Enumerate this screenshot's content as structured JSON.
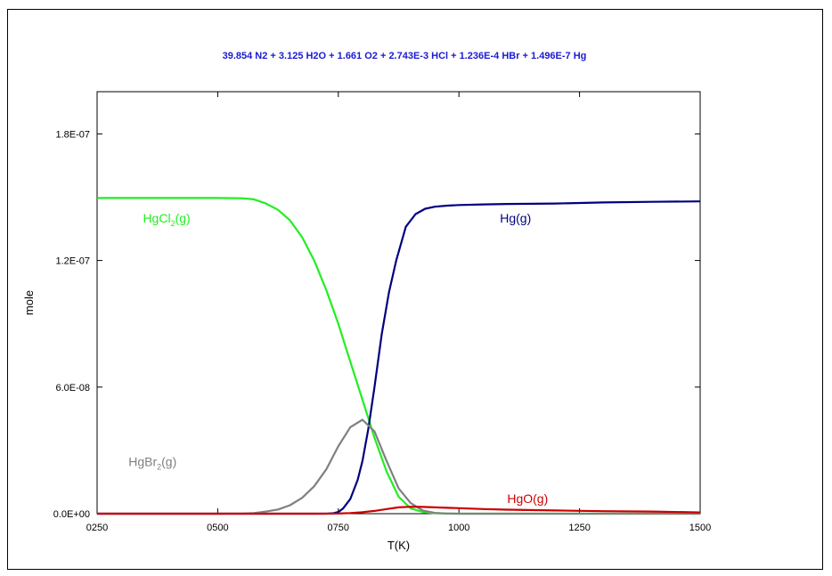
{
  "chart_data": {
    "type": "line",
    "title": "39.854 N2 +  3.125 H2O +  1.661 O2 + 2.743E-3 HCl + 1.236E-4 HBr + 1.496E-7 Hg",
    "title_color": "#1a1ad4",
    "xlabel": "T(K)",
    "ylabel": "mole",
    "xlim": [
      250,
      1500
    ],
    "ylim": [
      0,
      2e-07
    ],
    "x_ticks": [
      250,
      500,
      750,
      1000,
      1250,
      1500
    ],
    "x_tick_labels": [
      "0250",
      "0500",
      "0750",
      "1000",
      "1250",
      "1500"
    ],
    "y_ticks": [
      0,
      6e-08,
      1.2e-07,
      1.8e-07
    ],
    "y_tick_labels": [
      "0.0E+00",
      "6.0E-08",
      "1.2E-07",
      "1.8E-07"
    ],
    "grid": false,
    "series": [
      {
        "name": "HgCl2(g)",
        "label_text": "HgCl",
        "label_sub": "2",
        "label_suffix": "(g)",
        "label_at": [
          345,
          1.38e-07
        ],
        "color": "#22ee22",
        "x": [
          250,
          300,
          350,
          400,
          450,
          500,
          550,
          575,
          600,
          625,
          650,
          675,
          700,
          725,
          750,
          775,
          800,
          825,
          850,
          875,
          900,
          925,
          950,
          975,
          1000,
          1100,
          1250,
          1500
        ],
        "y": [
          1.496e-07,
          1.496e-07,
          1.496e-07,
          1.496e-07,
          1.496e-07,
          1.496e-07,
          1.495e-07,
          1.49e-07,
          1.47e-07,
          1.44e-07,
          1.39e-07,
          1.31e-07,
          1.2e-07,
          1.06e-07,
          9e-08,
          7.2e-08,
          5.4e-08,
          3.6e-08,
          2e-08,
          8e-09,
          2.5e-09,
          8e-10,
          2e-10,
          5e-11,
          1e-11,
          0,
          0,
          0
        ]
      },
      {
        "name": "Hg(g)",
        "label_text": "Hg(g)",
        "label_sub": "",
        "label_suffix": "",
        "label_at": [
          1085,
          1.38e-07
        ],
        "color": "#000080",
        "x": [
          250,
          500,
          700,
          725,
          740,
          750,
          760,
          775,
          790,
          800,
          812,
          825,
          840,
          855,
          870,
          890,
          910,
          930,
          950,
          975,
          1000,
          1050,
          1100,
          1200,
          1300,
          1400,
          1500
        ],
        "y": [
          0,
          0,
          0,
          2e-11,
          2e-10,
          8e-10,
          2.5e-09,
          7e-09,
          1.6e-08,
          2.5e-08,
          4e-08,
          6e-08,
          8.5e-08,
          1.05e-07,
          1.2e-07,
          1.36e-07,
          1.42e-07,
          1.445e-07,
          1.455e-07,
          1.46e-07,
          1.463e-07,
          1.466e-07,
          1.468e-07,
          1.47e-07,
          1.475e-07,
          1.478e-07,
          1.48e-07
        ]
      },
      {
        "name": "HgBr2(g)",
        "label_text": "HgBr",
        "label_sub": "2",
        "label_suffix": "(g)",
        "label_at": [
          315,
          2.25e-08
        ],
        "color": "#808080",
        "x": [
          250,
          500,
          550,
          575,
          600,
          625,
          650,
          675,
          700,
          725,
          750,
          775,
          800,
          825,
          850,
          875,
          900,
          925,
          950,
          975,
          1000,
          1100,
          1500
        ],
        "y": [
          0,
          0,
          1e-10,
          3e-10,
          1e-09,
          2e-09,
          4e-09,
          7.5e-09,
          1.3e-08,
          2.1e-08,
          3.2e-08,
          4.1e-08,
          4.45e-08,
          3.9e-08,
          2.5e-08,
          1.2e-08,
          5e-09,
          1.5e-09,
          4e-10,
          1e-10,
          0,
          0,
          0
        ]
      },
      {
        "name": "HgO(g)",
        "label_text": "HgO(g)",
        "label_sub": "",
        "label_suffix": "",
        "label_at": [
          1100,
          5e-09
        ],
        "color": "#cc0000",
        "x": [
          250,
          700,
          750,
          775,
          800,
          825,
          850,
          875,
          900,
          925,
          950,
          1000,
          1050,
          1100,
          1200,
          1300,
          1400,
          1500
        ],
        "y": [
          0,
          0,
          1e-10,
          3e-10,
          7e-10,
          1.3e-09,
          2.2e-09,
          3e-09,
          3.3e-09,
          3.2e-09,
          3e-09,
          2.6e-09,
          2.2e-09,
          1.9e-09,
          1.5e-09,
          1.2e-09,
          1e-09,
          6e-10
        ]
      }
    ]
  }
}
